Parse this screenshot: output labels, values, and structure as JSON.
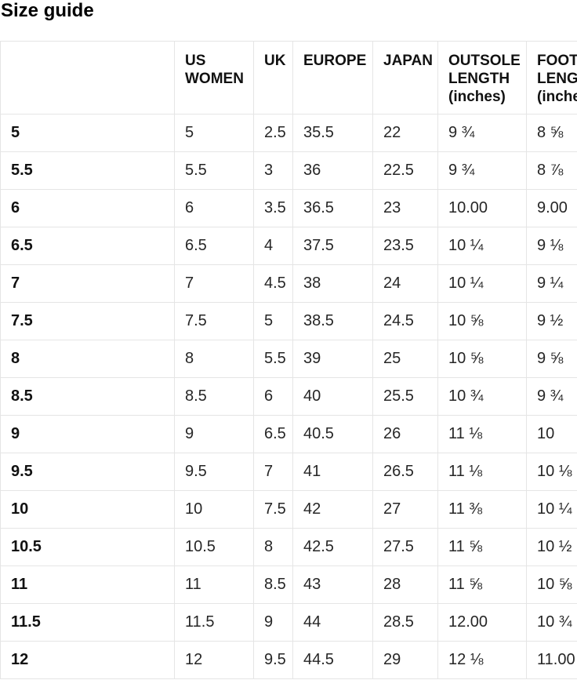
{
  "page_title": "Size guide",
  "chart_data": {
    "type": "table",
    "title": "Size guide",
    "columns": [
      "",
      "US WOMEN",
      "UK",
      "EUROPE",
      "JAPAN",
      "OUTSOLE LENGTH (inches)",
      "FOOT LENGTH (inches)"
    ],
    "rows": [
      [
        "5",
        "5",
        "2.5",
        "35.5",
        "22",
        "9 ¾",
        "8 ⅝"
      ],
      [
        "5.5",
        "5.5",
        "3",
        "36",
        "22.5",
        "9 ¾",
        "8 ⅞"
      ],
      [
        "6",
        "6",
        "3.5",
        "36.5",
        "23",
        "10.00",
        "9.00"
      ],
      [
        "6.5",
        "6.5",
        "4",
        "37.5",
        "23.5",
        "10 ¼",
        "9 ⅛"
      ],
      [
        "7",
        "7",
        "4.5",
        "38",
        "24",
        "10 ¼",
        "9 ¼"
      ],
      [
        "7.5",
        "7.5",
        "5",
        "38.5",
        "24.5",
        "10 ⅝",
        "9 ½"
      ],
      [
        "8",
        "8",
        "5.5",
        "39",
        "25",
        "10 ⅝",
        "9 ⅝"
      ],
      [
        "8.5",
        "8.5",
        "6",
        "40",
        "25.5",
        "10 ¾",
        "9 ¾"
      ],
      [
        "9",
        "9",
        "6.5",
        "40.5",
        "26",
        "11 ⅛",
        "10"
      ],
      [
        "9.5",
        "9.5",
        "7",
        "41",
        "26.5",
        "11 ⅛",
        "10 ⅛"
      ],
      [
        "10",
        "10",
        "7.5",
        "42",
        "27",
        "11 ⅜",
        "10 ¼"
      ],
      [
        "10.5",
        "10.5",
        "8",
        "42.5",
        "27.5",
        "11 ⅝",
        "10 ½"
      ],
      [
        "11",
        "11",
        "8.5",
        "43",
        "28",
        "11 ⅝",
        "10 ⅝"
      ],
      [
        "11.5",
        "11.5",
        "9",
        "44",
        "28.5",
        "12.00",
        "10 ¾"
      ],
      [
        "12",
        "12",
        "9.5",
        "44.5",
        "29",
        "12 ⅛",
        "11.00"
      ]
    ]
  },
  "colors": {
    "background": "#ffffff",
    "border": "#e5e5e5",
    "text": "#262626",
    "heading_text": "#111111"
  }
}
